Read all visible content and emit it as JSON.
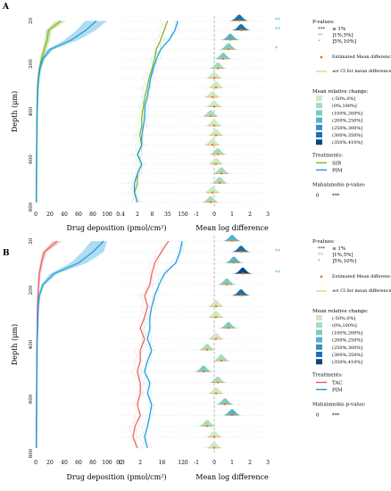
{
  "chart_data": [
    {
      "panel": "A",
      "type": "line",
      "ylabel": "Depth (μm)",
      "y_ticks": [
        "20",
        "200",
        "400",
        "600",
        "800"
      ],
      "ylim": [
        0,
        800
      ],
      "xlabel_left": "Drug deposition (pmol/cm²)",
      "xlabel_right": "Mean log difference",
      "deposition_linear_ticks": [
        "0",
        "20",
        "40",
        "60",
        "80",
        "100"
      ],
      "deposition_linear_range": [
        0,
        100
      ],
      "deposition_log_ticks": [
        "0.4",
        "2",
        "8",
        "35",
        "150"
      ],
      "deposition_log_range": [
        0.4,
        150
      ],
      "diff_ticks": [
        "-1",
        "0",
        "1",
        "2",
        "3"
      ],
      "diff_range": [
        -1,
        3
      ],
      "depths": [
        20,
        60,
        100,
        140,
        180,
        220,
        260,
        300,
        340,
        380,
        420,
        460,
        500,
        540,
        580,
        620,
        660,
        700,
        740,
        780
      ],
      "series": [
        {
          "name": "SIR",
          "color": "#7fb51f",
          "linear": [
            35,
            18,
            16,
            12,
            8,
            5,
            3.5,
            2.5,
            2.2,
            2,
            1.8,
            1.6,
            1.5,
            1.4,
            1.3,
            1.2,
            1.1,
            1.0,
            0.9,
            0.8
          ],
          "log": [
            35,
            25,
            18,
            12,
            10,
            8,
            6,
            5,
            4,
            3.5,
            3,
            3,
            2.5,
            3,
            2,
            3,
            2,
            2,
            1.5,
            2
          ]
        },
        {
          "name": "PIM",
          "color": "#1a9ad6",
          "linear": [
            85,
            70,
            50,
            20,
            10,
            6,
            4,
            3,
            2.5,
            2,
            1.8,
            1.6,
            1.5,
            1.3,
            1.2,
            1.1,
            1.0,
            0.9,
            0.8,
            0.7
          ],
          "log": [
            90,
            70,
            40,
            18,
            12,
            9,
            7,
            6,
            5,
            4,
            4,
            3.5,
            3,
            3,
            2,
            3,
            2,
            1.5,
            1.5,
            2
          ]
        }
      ],
      "mean_log_diff": [
        1.4,
        1.5,
        0.9,
        0.8,
        0.5,
        0.2,
        0,
        0.1,
        -0.1,
        0,
        -0.2,
        0,
        0.1,
        -0.1,
        0.2,
        0.1,
        0.4,
        0.3,
        -0.1,
        -0.2
      ],
      "significance": [
        "**",
        "**",
        "",
        "*",
        "",
        "",
        "",
        "",
        "",
        "",
        "",
        "",
        "",
        "",
        "",
        "",
        "",
        "",
        "",
        ""
      ]
    },
    {
      "panel": "B",
      "type": "line",
      "ylabel": "Depth (μm)",
      "y_ticks": [
        "20",
        "200",
        "400",
        "600",
        "800"
      ],
      "ylim": [
        0,
        800
      ],
      "xlabel_left": "Drug deposition (pmol/cm²)",
      "xlabel_right": "Mean log difference",
      "deposition_linear_ticks": [
        "0",
        "20",
        "40",
        "60",
        "80",
        "100"
      ],
      "deposition_linear_range": [
        0,
        100
      ],
      "deposition_log_ticks": [
        "0",
        "0.3",
        "2",
        "16",
        "120"
      ],
      "deposition_log_range": [
        0.3,
        120
      ],
      "diff_ticks": [
        "-1",
        "0",
        "1",
        "2",
        "3"
      ],
      "diff_range": [
        -1,
        3
      ],
      "depths": [
        20,
        60,
        100,
        140,
        180,
        220,
        260,
        300,
        340,
        380,
        420,
        460,
        500,
        540,
        580,
        620,
        660,
        700,
        740,
        780
      ],
      "series": [
        {
          "name": "TAC",
          "color": "#e8615a",
          "linear": [
            30,
            12,
            8,
            5,
            4,
            3,
            2.5,
            2.2,
            2,
            1.8,
            1.6,
            1.5,
            1.4,
            1.3,
            1.2,
            1.1,
            1,
            0.9,
            0.8,
            0.7
          ],
          "log": [
            30,
            15,
            8,
            6,
            5,
            3,
            4,
            3,
            2,
            3,
            2,
            2,
            1.5,
            2,
            2,
            1.5,
            2,
            1.2,
            1,
            1.5
          ]
        },
        {
          "name": "PIM",
          "color": "#1a9ad6",
          "linear": [
            95,
            80,
            60,
            25,
            10,
            5,
            3.5,
            3,
            2.5,
            2,
            1.8,
            1.6,
            1.5,
            1.4,
            1.3,
            1.2,
            1.1,
            1.0,
            0.9,
            0.8
          ],
          "log": [
            110,
            90,
            60,
            20,
            12,
            8,
            6,
            5,
            5,
            4,
            6,
            4,
            3,
            5,
            4,
            6,
            5,
            4,
            3,
            4
          ]
        }
      ],
      "mean_log_diff": [
        1.0,
        1.5,
        1.1,
        1.6,
        0.7,
        1.5,
        0.1,
        0.1,
        0.8,
        0.1,
        -0.4,
        0.4,
        -0.6,
        0.2,
        0.1,
        0.6,
        1.0,
        -0.4,
        0,
        0
      ],
      "significance": [
        "",
        "**",
        "",
        "**",
        "",
        "",
        "",
        "",
        "",
        "",
        "",
        "",
        "",
        "",
        "",
        "",
        "",
        "",
        "",
        ""
      ]
    }
  ],
  "legend": {
    "pvalues_title": "P-values:",
    "pvalues": [
      {
        "stars": "***",
        "label": "≤ 1%"
      },
      {
        "stars": "**",
        "label": "]1%,5%]"
      },
      {
        "stars": "*",
        "label": "]5%,10%]"
      }
    ],
    "mean_label": "Estimated Mean difference",
    "ci_label": "±σ CI for mean difference",
    "rel_change_title": "Mean relative change:",
    "rel_change": [
      {
        "label": "(-50%,0%]",
        "color": "#cde9c6"
      },
      {
        "label": "(0%,100%]",
        "color": "#a6dbc1"
      },
      {
        "label": "(100%,200%]",
        "color": "#7ecbc3"
      },
      {
        "label": "(200%,250%]",
        "color": "#57b2c9"
      },
      {
        "label": "(250%,300%]",
        "color": "#3591c2"
      },
      {
        "label": "(300%,350%]",
        "color": "#1f6fad"
      },
      {
        "label": "(350%,410%]",
        "color": "#0b4589"
      }
    ],
    "treatments_title": "Treatments:",
    "mahal_title": "Mahalanobis p-value:",
    "mahal_value": "0",
    "mahal_stars": "***"
  },
  "colors": {
    "star": "#4db6e6",
    "mean": "#e87722",
    "ci": "#e8a040",
    "zero": "#888888"
  }
}
